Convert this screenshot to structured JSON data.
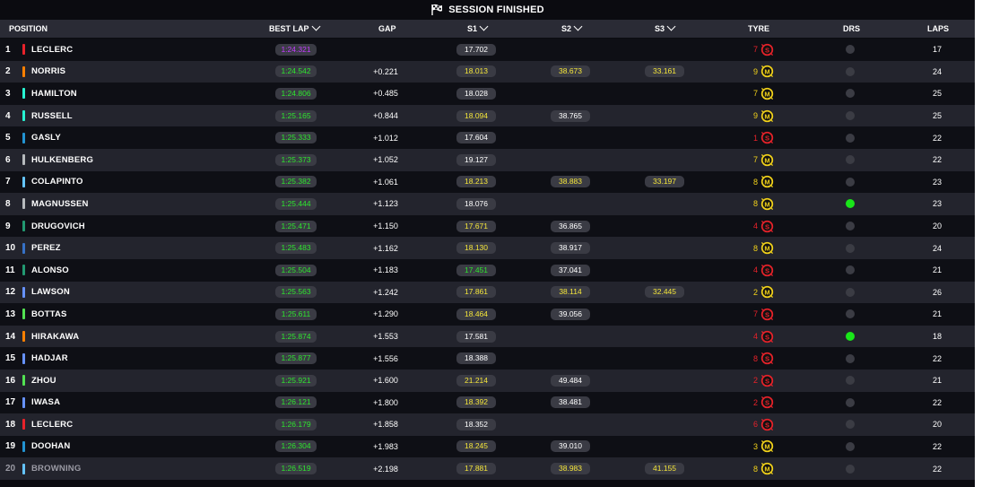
{
  "title": "SESSION FINISHED",
  "headers": {
    "position": "POSITION",
    "best_lap": "BEST LAP",
    "gap": "GAP",
    "s1": "S1",
    "s2": "S2",
    "s3": "S3",
    "tyre": "TYRE",
    "drs": "DRS",
    "laps": "LAPS"
  },
  "colors": {
    "purple": "#c43cff",
    "green": "#2ee62e",
    "yellow": "#f5e63a",
    "white": "#ffffff",
    "soft": "#e8222a",
    "medium": "#f2d21a"
  },
  "rows": [
    {
      "pos": "1",
      "team": "#e8222a",
      "name": "LECLERC",
      "best": "1:24.321",
      "best_c": "purple",
      "gap": "",
      "s1": "17.702",
      "s1_c": "white",
      "s2": "",
      "s2_c": "white",
      "s3": "",
      "s3_c": "white",
      "tyre_laps": "7",
      "tyre": "S",
      "drs": false,
      "laps": "17"
    },
    {
      "pos": "2",
      "team": "#ff8000",
      "name": "NORRIS",
      "best": "1:24.542",
      "best_c": "green",
      "gap": "+0.221",
      "s1": "18.013",
      "s1_c": "yellow",
      "s2": "38.673",
      "s2_c": "yellow",
      "s3": "33.161",
      "s3_c": "yellow",
      "tyre_laps": "9",
      "tyre": "M",
      "drs": false,
      "laps": "24"
    },
    {
      "pos": "3",
      "team": "#27f4d2",
      "name": "HAMILTON",
      "best": "1:24.806",
      "best_c": "green",
      "gap": "+0.485",
      "s1": "18.028",
      "s1_c": "white",
      "s2": "",
      "s2_c": "white",
      "s3": "",
      "s3_c": "white",
      "tyre_laps": "7",
      "tyre": "M",
      "drs": false,
      "laps": "25"
    },
    {
      "pos": "4",
      "team": "#27f4d2",
      "name": "RUSSELL",
      "best": "1:25.165",
      "best_c": "green",
      "gap": "+0.844",
      "s1": "18.094",
      "s1_c": "yellow",
      "s2": "38.765",
      "s2_c": "white",
      "s3": "",
      "s3_c": "white",
      "tyre_laps": "9",
      "tyre": "M",
      "drs": false,
      "laps": "25"
    },
    {
      "pos": "5",
      "team": "#2293d1",
      "name": "GASLY",
      "best": "1:25.333",
      "best_c": "green",
      "gap": "+1.012",
      "s1": "17.604",
      "s1_c": "white",
      "s2": "",
      "s2_c": "white",
      "s3": "",
      "s3_c": "white",
      "tyre_laps": "1",
      "tyre": "S",
      "drs": false,
      "laps": "22"
    },
    {
      "pos": "6",
      "team": "#b6babd",
      "name": "HULKENBERG",
      "best": "1:25.373",
      "best_c": "green",
      "gap": "+1.052",
      "s1": "19.127",
      "s1_c": "white",
      "s2": "",
      "s2_c": "white",
      "s3": "",
      "s3_c": "white",
      "tyre_laps": "7",
      "tyre": "M",
      "drs": false,
      "laps": "22"
    },
    {
      "pos": "7",
      "team": "#64c4ff",
      "name": "COLAPINTO",
      "best": "1:25.382",
      "best_c": "green",
      "gap": "+1.061",
      "s1": "18.213",
      "s1_c": "yellow",
      "s2": "38.883",
      "s2_c": "yellow",
      "s3": "33.197",
      "s3_c": "yellow",
      "tyre_laps": "8",
      "tyre": "M",
      "drs": false,
      "laps": "23"
    },
    {
      "pos": "8",
      "team": "#b6babd",
      "name": "MAGNUSSEN",
      "best": "1:25.444",
      "best_c": "green",
      "gap": "+1.123",
      "s1": "18.076",
      "s1_c": "white",
      "s2": "",
      "s2_c": "white",
      "s3": "",
      "s3_c": "white",
      "tyre_laps": "8",
      "tyre": "M",
      "drs": true,
      "laps": "23"
    },
    {
      "pos": "9",
      "team": "#229971",
      "name": "DRUGOVICH",
      "best": "1:25.471",
      "best_c": "green",
      "gap": "+1.150",
      "s1": "17.671",
      "s1_c": "yellow",
      "s2": "36.865",
      "s2_c": "white",
      "s3": "",
      "s3_c": "white",
      "tyre_laps": "4",
      "tyre": "S",
      "drs": false,
      "laps": "20"
    },
    {
      "pos": "10",
      "team": "#3671c6",
      "name": "PEREZ",
      "best": "1:25.483",
      "best_c": "green",
      "gap": "+1.162",
      "s1": "18.130",
      "s1_c": "yellow",
      "s2": "38.917",
      "s2_c": "white",
      "s3": "",
      "s3_c": "white",
      "tyre_laps": "8",
      "tyre": "M",
      "drs": false,
      "laps": "24"
    },
    {
      "pos": "11",
      "team": "#229971",
      "name": "ALONSO",
      "best": "1:25.504",
      "best_c": "green",
      "gap": "+1.183",
      "s1": "17.451",
      "s1_c": "green",
      "s2": "37.041",
      "s2_c": "white",
      "s3": "",
      "s3_c": "white",
      "tyre_laps": "4",
      "tyre": "S",
      "drs": false,
      "laps": "21"
    },
    {
      "pos": "12",
      "team": "#6692ff",
      "name": "LAWSON",
      "best": "1:25.563",
      "best_c": "green",
      "gap": "+1.242",
      "s1": "17.861",
      "s1_c": "yellow",
      "s2": "38.114",
      "s2_c": "yellow",
      "s3": "32.445",
      "s3_c": "yellow",
      "tyre_laps": "2",
      "tyre": "M",
      "drs": false,
      "laps": "26"
    },
    {
      "pos": "13",
      "team": "#52e252",
      "name": "BOTTAS",
      "best": "1:25.611",
      "best_c": "green",
      "gap": "+1.290",
      "s1": "18.464",
      "s1_c": "yellow",
      "s2": "39.056",
      "s2_c": "white",
      "s3": "",
      "s3_c": "white",
      "tyre_laps": "7",
      "tyre": "S",
      "drs": false,
      "laps": "21"
    },
    {
      "pos": "14",
      "team": "#ff8000",
      "name": "HIRAKAWA",
      "best": "1:25.874",
      "best_c": "green",
      "gap": "+1.553",
      "s1": "17.581",
      "s1_c": "white",
      "s2": "",
      "s2_c": "white",
      "s3": "",
      "s3_c": "white",
      "tyre_laps": "4",
      "tyre": "S",
      "drs": true,
      "laps": "18"
    },
    {
      "pos": "15",
      "team": "#6692ff",
      "name": "HADJAR",
      "best": "1:25.877",
      "best_c": "green",
      "gap": "+1.556",
      "s1": "18.388",
      "s1_c": "white",
      "s2": "",
      "s2_c": "white",
      "s3": "",
      "s3_c": "white",
      "tyre_laps": "8",
      "tyre": "S",
      "drs": false,
      "laps": "22"
    },
    {
      "pos": "16",
      "team": "#52e252",
      "name": "ZHOU",
      "best": "1:25.921",
      "best_c": "green",
      "gap": "+1.600",
      "s1": "21.214",
      "s1_c": "yellow",
      "s2": "49.484",
      "s2_c": "white",
      "s3": "",
      "s3_c": "white",
      "tyre_laps": "2",
      "tyre": "S",
      "drs": false,
      "laps": "21"
    },
    {
      "pos": "17",
      "team": "#6692ff",
      "name": "IWASA",
      "best": "1:26.121",
      "best_c": "green",
      "gap": "+1.800",
      "s1": "18.392",
      "s1_c": "yellow",
      "s2": "38.481",
      "s2_c": "white",
      "s3": "",
      "s3_c": "white",
      "tyre_laps": "2",
      "tyre": "S",
      "drs": false,
      "laps": "22"
    },
    {
      "pos": "18",
      "team": "#e8222a",
      "name": "LECLERC",
      "best": "1:26.179",
      "best_c": "green",
      "gap": "+1.858",
      "s1": "18.352",
      "s1_c": "white",
      "s2": "",
      "s2_c": "white",
      "s3": "",
      "s3_c": "white",
      "tyre_laps": "6",
      "tyre": "S",
      "drs": false,
      "laps": "20"
    },
    {
      "pos": "19",
      "team": "#2293d1",
      "name": "DOOHAN",
      "best": "1:26.304",
      "best_c": "green",
      "gap": "+1.983",
      "s1": "18.245",
      "s1_c": "yellow",
      "s2": "39.010",
      "s2_c": "white",
      "s3": "",
      "s3_c": "white",
      "tyre_laps": "3",
      "tyre": "M",
      "drs": false,
      "laps": "22"
    },
    {
      "pos": "20",
      "team": "#64c4ff",
      "name": "BROWNING",
      "best": "1:26.519",
      "best_c": "green",
      "gap": "+2.198",
      "s1": "17.881",
      "s1_c": "yellow",
      "s2": "38.983",
      "s2_c": "yellow",
      "s3": "41.155",
      "s3_c": "yellow",
      "tyre_laps": "8",
      "tyre": "M",
      "drs": false,
      "laps": "22",
      "dim": true
    }
  ]
}
